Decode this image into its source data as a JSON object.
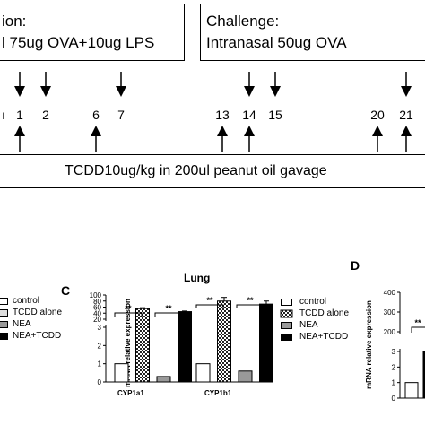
{
  "timeline": {
    "sensitization_heading": "ion:",
    "sensitization_detail": "l 75ug OVA+10ug LPS",
    "challenge_heading": "Challenge:",
    "challenge_detail": "Intranasal 50ug  OVA",
    "days": [
      "1",
      "2",
      "6",
      "7",
      "13",
      "14",
      "15",
      "20",
      "21"
    ],
    "tcdd_label": "TCDD10ug/kg in 200ul peanut oil gavage"
  },
  "panel_c_letter": "C",
  "panel_d_letter": "D",
  "left_legend": [
    "control",
    "TCDD alone",
    "NEA",
    "NEA+TCDD"
  ],
  "chart_data": [
    {
      "type": "bar",
      "title": "Lung",
      "ylabel": "mRNA relative expression",
      "categories": [
        "CYP1a1",
        "CYP1b1"
      ],
      "series": [
        {
          "name": "control",
          "values": [
            1,
            1
          ]
        },
        {
          "name": "TCDD alone",
          "values": [
            55,
            80
          ]
        },
        {
          "name": "NEA",
          "values": [
            0.3,
            0.6
          ]
        },
        {
          "name": "NEA+TCDD",
          "values": [
            45,
            70
          ]
        }
      ],
      "errors": [
        [
          0,
          0
        ],
        [
          3,
          12
        ],
        [
          0,
          0
        ],
        [
          2,
          10
        ]
      ],
      "ylim_lower": [
        0,
        3
      ],
      "ylim_upper": [
        0,
        100
      ],
      "yticks_lower": [
        "0",
        "1",
        "2",
        "3"
      ],
      "yticks_upper": [
        "20",
        "40",
        "60",
        "80",
        "100"
      ],
      "significance": [
        "**",
        "**",
        "**",
        "**"
      ],
      "legend": [
        "control",
        "TCDD alone",
        "NEA",
        "NEA+TCDD"
      ],
      "legend_position": "right"
    },
    {
      "type": "bar",
      "ylabel": "mRNA relative expression",
      "yticks_lower": [
        "0",
        "1",
        "2",
        "3"
      ],
      "yticks_upper": [
        "200",
        "300",
        "400"
      ],
      "significance": [
        "**"
      ],
      "visible_values": [
        1
      ]
    }
  ]
}
